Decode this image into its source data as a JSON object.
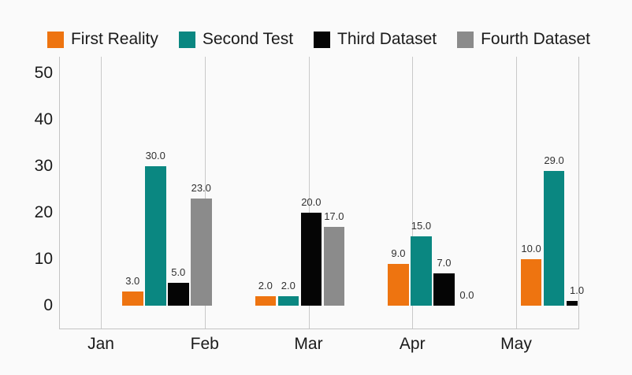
{
  "chart_data": {
    "type": "bar",
    "title": "",
    "x_tick_labels": [
      "Jan",
      "Feb",
      "Mar",
      "Apr",
      "May"
    ],
    "y_ticks": [
      0,
      10,
      20,
      30,
      40,
      50
    ],
    "ylim": [
      0,
      50
    ],
    "legend_position": "top",
    "grid": "vertical-gridlines-only",
    "background_color": "#FAFAFA",
    "gridline_color": "#C9C9C9",
    "axis_line_color": "#C4C4C4",
    "text_color": "#1A1A1A",
    "value_label_color": "#303030",
    "bar_groups_visible": 4,
    "layout_note": "The 4 bar groups sit offset to the right of the month ticks; the last group's 3rd bar is clipped by the plot's right edge and its 4th bar (plus value label) is cut off entirely.",
    "series": [
      {
        "name": "First Reality",
        "color": "#EE7410",
        "values": [
          3.0,
          2.0,
          9.0,
          10.0
        ]
      },
      {
        "name": "Second Test",
        "color": "#0A8781",
        "values": [
          30.0,
          2.0,
          15.0,
          29.0
        ]
      },
      {
        "name": "Third Dataset",
        "color": "#050505",
        "values": [
          5.0,
          20.0,
          7.0,
          1.0
        ]
      },
      {
        "name": "Fourth Dataset",
        "color": "#8B8B8B",
        "values": [
          23.0,
          17.0,
          0.0,
          null
        ]
      }
    ]
  }
}
